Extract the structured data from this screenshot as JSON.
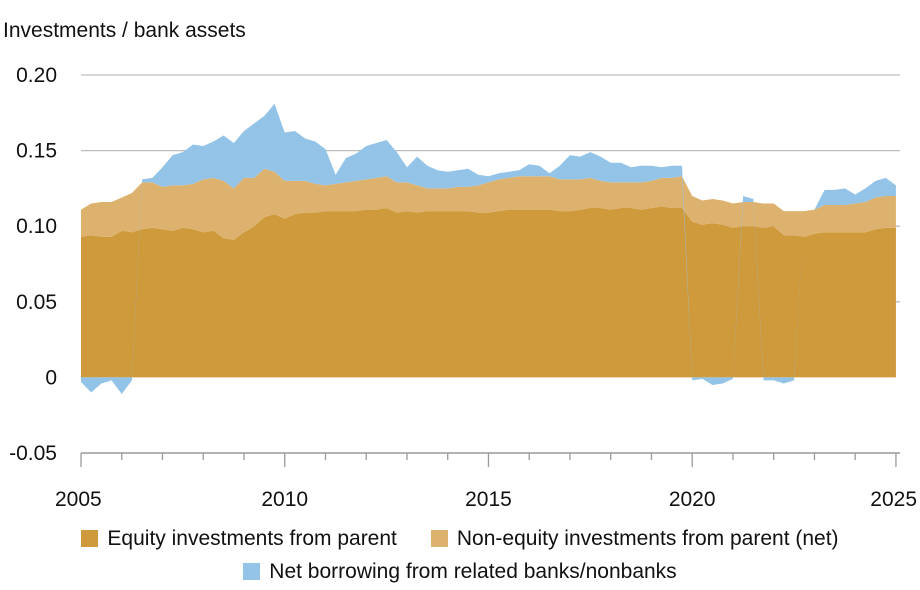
{
  "chart_data": {
    "type": "area",
    "stacked": true,
    "ylabel": "Investments / bank assets",
    "xlabel": "",
    "xlim": [
      2005,
      2025.1
    ],
    "ylim": [
      -0.05,
      0.2
    ],
    "y_ticks": [
      -0.05,
      0,
      0.05,
      0.1,
      0.15,
      0.2
    ],
    "y_tick_labels": [
      "-0.05",
      "0",
      "0.05",
      "0.10",
      "0.15",
      "0.20"
    ],
    "x_ticks": [
      2005,
      2010,
      2015,
      2020,
      2025
    ],
    "x_tick_labels": [
      "2005",
      "2010",
      "2015",
      "2020",
      "2025"
    ],
    "grid": "horizontal",
    "legend_position": "bottom",
    "x": [
      2005.0,
      2005.25,
      2005.5,
      2005.75,
      2006.0,
      2006.25,
      2006.5,
      2006.75,
      2007.0,
      2007.25,
      2007.5,
      2007.75,
      2008.0,
      2008.25,
      2008.5,
      2008.75,
      2009.0,
      2009.25,
      2009.5,
      2009.75,
      2010.0,
      2010.25,
      2010.5,
      2010.75,
      2011.0,
      2011.25,
      2011.5,
      2011.75,
      2012.0,
      2012.25,
      2012.5,
      2012.75,
      2013.0,
      2013.25,
      2013.5,
      2013.75,
      2014.0,
      2014.25,
      2014.5,
      2014.75,
      2015.0,
      2015.25,
      2015.5,
      2015.75,
      2016.0,
      2016.25,
      2016.5,
      2016.75,
      2017.0,
      2017.25,
      2017.5,
      2017.75,
      2018.0,
      2018.25,
      2018.5,
      2018.75,
      2019.0,
      2019.25,
      2019.5,
      2019.75,
      2020.0,
      2020.25,
      2020.5,
      2020.75,
      2021.0,
      2021.25,
      2021.5,
      2021.75,
      2022.0,
      2022.25,
      2022.5,
      2022.75,
      2023.0,
      2023.25,
      2023.5,
      2023.75,
      2024.0,
      2024.25,
      2024.5,
      2024.75,
      2025.0
    ],
    "series": [
      {
        "name": "Equity investments from parent",
        "color": "#cf9a3c",
        "values": [
          0.093,
          0.094,
          0.093,
          0.093,
          0.097,
          0.096,
          0.098,
          0.099,
          0.098,
          0.097,
          0.099,
          0.098,
          0.096,
          0.097,
          0.092,
          0.091,
          0.096,
          0.1,
          0.106,
          0.108,
          0.105,
          0.108,
          0.109,
          0.109,
          0.11,
          0.11,
          0.11,
          0.11,
          0.111,
          0.111,
          0.112,
          0.109,
          0.11,
          0.109,
          0.11,
          0.11,
          0.11,
          0.11,
          0.11,
          0.109,
          0.109,
          0.11,
          0.111,
          0.111,
          0.111,
          0.111,
          0.111,
          0.11,
          0.11,
          0.111,
          0.112,
          0.112,
          0.111,
          0.112,
          0.112,
          0.111,
          0.112,
          0.113,
          0.112,
          0.112,
          0.103,
          0.101,
          0.102,
          0.101,
          0.099,
          0.1,
          0.1,
          0.099,
          0.1,
          0.094,
          0.094,
          0.093,
          0.095,
          0.096,
          0.096,
          0.096,
          0.096,
          0.096,
          0.098,
          0.099,
          0.099
        ]
      },
      {
        "name": "Non-equity investments from parent (net)",
        "color": "#ddb26e",
        "values": [
          0.018,
          0.021,
          0.023,
          0.023,
          0.022,
          0.026,
          0.031,
          0.03,
          0.028,
          0.03,
          0.028,
          0.03,
          0.035,
          0.035,
          0.038,
          0.034,
          0.036,
          0.032,
          0.032,
          0.028,
          0.025,
          0.022,
          0.021,
          0.019,
          0.017,
          0.018,
          0.019,
          0.02,
          0.02,
          0.021,
          0.021,
          0.02,
          0.019,
          0.018,
          0.015,
          0.015,
          0.015,
          0.016,
          0.016,
          0.018,
          0.02,
          0.021,
          0.021,
          0.022,
          0.022,
          0.022,
          0.022,
          0.021,
          0.021,
          0.02,
          0.02,
          0.018,
          0.018,
          0.017,
          0.017,
          0.018,
          0.018,
          0.019,
          0.02,
          0.021,
          0.017,
          0.016,
          0.016,
          0.016,
          0.016,
          0.016,
          0.016,
          0.016,
          0.015,
          0.016,
          0.016,
          0.017,
          0.016,
          0.018,
          0.018,
          0.018,
          0.019,
          0.02,
          0.021,
          0.021,
          0.021
        ]
      },
      {
        "name": "Net borrowing from related banks/nonbanks",
        "color": "#93c4e8",
        "values": [
          -0.003,
          -0.01,
          -0.004,
          -0.002,
          -0.011,
          -0.002,
          0.002,
          0.003,
          0.013,
          0.02,
          0.022,
          0.026,
          0.022,
          0.024,
          0.03,
          0.03,
          0.031,
          0.036,
          0.035,
          0.045,
          0.032,
          0.033,
          0.028,
          0.028,
          0.024,
          0.006,
          0.016,
          0.018,
          0.022,
          0.023,
          0.024,
          0.02,
          0.01,
          0.019,
          0.015,
          0.012,
          0.011,
          0.011,
          0.012,
          0.007,
          0.004,
          0.004,
          0.004,
          0.004,
          0.008,
          0.007,
          0.002,
          0.009,
          0.016,
          0.015,
          0.017,
          0.016,
          0.013,
          0.013,
          0.01,
          0.011,
          0.01,
          0.007,
          0.008,
          0.007,
          -0.002,
          -0.001,
          -0.005,
          -0.004,
          -0.001,
          0.004,
          0.002,
          -0.002,
          -0.002,
          -0.004,
          -0.002,
          0.0,
          0.0,
          0.01,
          0.01,
          0.011,
          0.006,
          0.009,
          0.011,
          0.012,
          0.007
        ]
      }
    ]
  }
}
